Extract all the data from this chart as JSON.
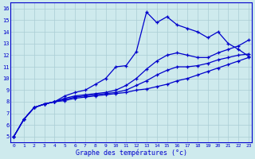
{
  "xlabel": "Graphe des températures (°c)",
  "x": [
    0,
    1,
    2,
    3,
    4,
    5,
    6,
    7,
    8,
    9,
    10,
    11,
    12,
    13,
    14,
    15,
    16,
    17,
    18,
    19,
    20,
    21,
    22,
    23
  ],
  "line1": [
    5.0,
    6.5,
    7.5,
    7.8,
    8.0,
    8.5,
    8.8,
    9.0,
    9.5,
    10.0,
    11.0,
    11.1,
    12.3,
    15.7,
    14.8,
    15.3,
    14.6,
    14.3,
    14.0,
    13.5,
    14.0,
    13.0,
    12.5,
    11.9
  ],
  "line2": [
    5.0,
    6.5,
    7.5,
    7.8,
    8.0,
    8.3,
    8.5,
    8.6,
    8.7,
    8.8,
    9.0,
    9.4,
    10.0,
    10.8,
    11.5,
    12.0,
    12.2,
    12.0,
    11.8,
    11.8,
    12.2,
    12.5,
    12.8,
    13.3
  ],
  "line3": [
    5.0,
    6.5,
    7.5,
    7.8,
    8.0,
    8.2,
    8.4,
    8.5,
    8.6,
    8.7,
    8.8,
    9.0,
    9.4,
    9.8,
    10.3,
    10.7,
    11.0,
    11.0,
    11.1,
    11.3,
    11.6,
    11.8,
    12.0,
    12.1
  ],
  "line4": [
    5.0,
    6.5,
    7.5,
    7.8,
    8.0,
    8.1,
    8.3,
    8.4,
    8.5,
    8.6,
    8.7,
    8.8,
    9.0,
    9.1,
    9.3,
    9.5,
    9.8,
    10.0,
    10.3,
    10.6,
    10.9,
    11.2,
    11.5,
    11.8
  ],
  "line_color": "#0000cc",
  "bg_color": "#ceeaed",
  "grid_color": "#aacdd4",
  "ylim": [
    4.5,
    16.5
  ],
  "xlim": [
    -0.3,
    23.3
  ],
  "yticks": [
    5,
    6,
    7,
    8,
    9,
    10,
    11,
    12,
    13,
    14,
    15,
    16
  ],
  "xticks": [
    0,
    1,
    2,
    3,
    4,
    5,
    6,
    7,
    8,
    9,
    10,
    11,
    12,
    13,
    14,
    15,
    16,
    17,
    18,
    19,
    20,
    21,
    22,
    23
  ]
}
